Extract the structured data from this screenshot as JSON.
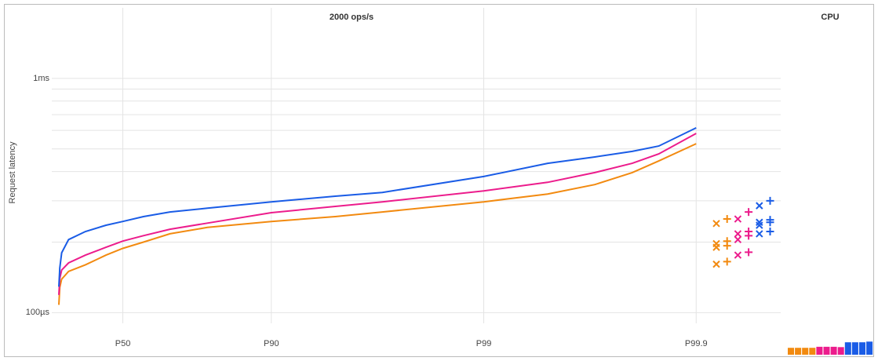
{
  "chart_data": {
    "type": "line",
    "title": "2000 ops/s",
    "ylabel": "Request latency",
    "log_y": true,
    "x_scale": "percentile",
    "x": [
      0,
      1,
      3,
      10,
      25,
      40,
      50,
      60,
      70,
      80,
      90,
      95,
      97,
      99,
      99.5,
      99.7,
      99.8,
      99.85,
      99.9
    ],
    "xlim": [
      -8,
      99.96
    ],
    "xticks": [
      {
        "value": 50,
        "label": "P50"
      },
      {
        "value": 90,
        "label": "P90"
      },
      {
        "value": 99,
        "label": "P99"
      },
      {
        "value": 99.9,
        "label": "P99.9"
      }
    ],
    "ylim": [
      90,
      2000
    ],
    "yticks": [
      {
        "value": 100,
        "label": "100µs"
      },
      {
        "value": 1000,
        "label": "1ms"
      }
    ],
    "y_minor_grid": [
      200,
      300,
      400,
      500,
      600,
      700,
      800,
      900
    ],
    "grid": true,
    "series": [
      {
        "color": "#f28a10",
        "values": [
          108,
          128,
          139,
          150,
          160,
          176,
          188,
          200,
          217,
          231,
          245,
          257,
          269,
          297,
          321,
          352,
          396,
          444,
          526
        ],
        "cross_marks": [
          240,
          197,
          190,
          161
        ],
        "plus_marks": [
          251,
          202,
          193,
          165
        ],
        "cpu": [
          2,
          2,
          2,
          2
        ]
      },
      {
        "color": "#ec1c8c",
        "values": [
          119,
          140,
          152,
          163,
          176,
          190,
          202,
          213,
          227,
          241,
          267,
          284,
          297,
          331,
          360,
          396,
          434,
          476,
          582
        ],
        "cross_marks": [
          251,
          217,
          205,
          176
        ],
        "plus_marks": [
          269,
          222,
          213,
          181
        ],
        "cpu": [
          2.3,
          2.3,
          2.3,
          2.2
        ]
      },
      {
        "color": "#1a5ce6",
        "values": [
          129,
          155,
          180,
          205,
          222,
          236,
          245,
          257,
          269,
          279,
          297,
          314,
          326,
          381,
          434,
          462,
          488,
          514,
          615
        ],
        "cross_marks": [
          286,
          243,
          236,
          217
        ],
        "plus_marks": [
          300,
          249,
          243,
          222
        ],
        "cpu": [
          3.6,
          3.6,
          3.6,
          3.8
        ]
      }
    ],
    "cpu_title": "CPU",
    "cpu_ylim": [
      0,
      100
    ]
  }
}
